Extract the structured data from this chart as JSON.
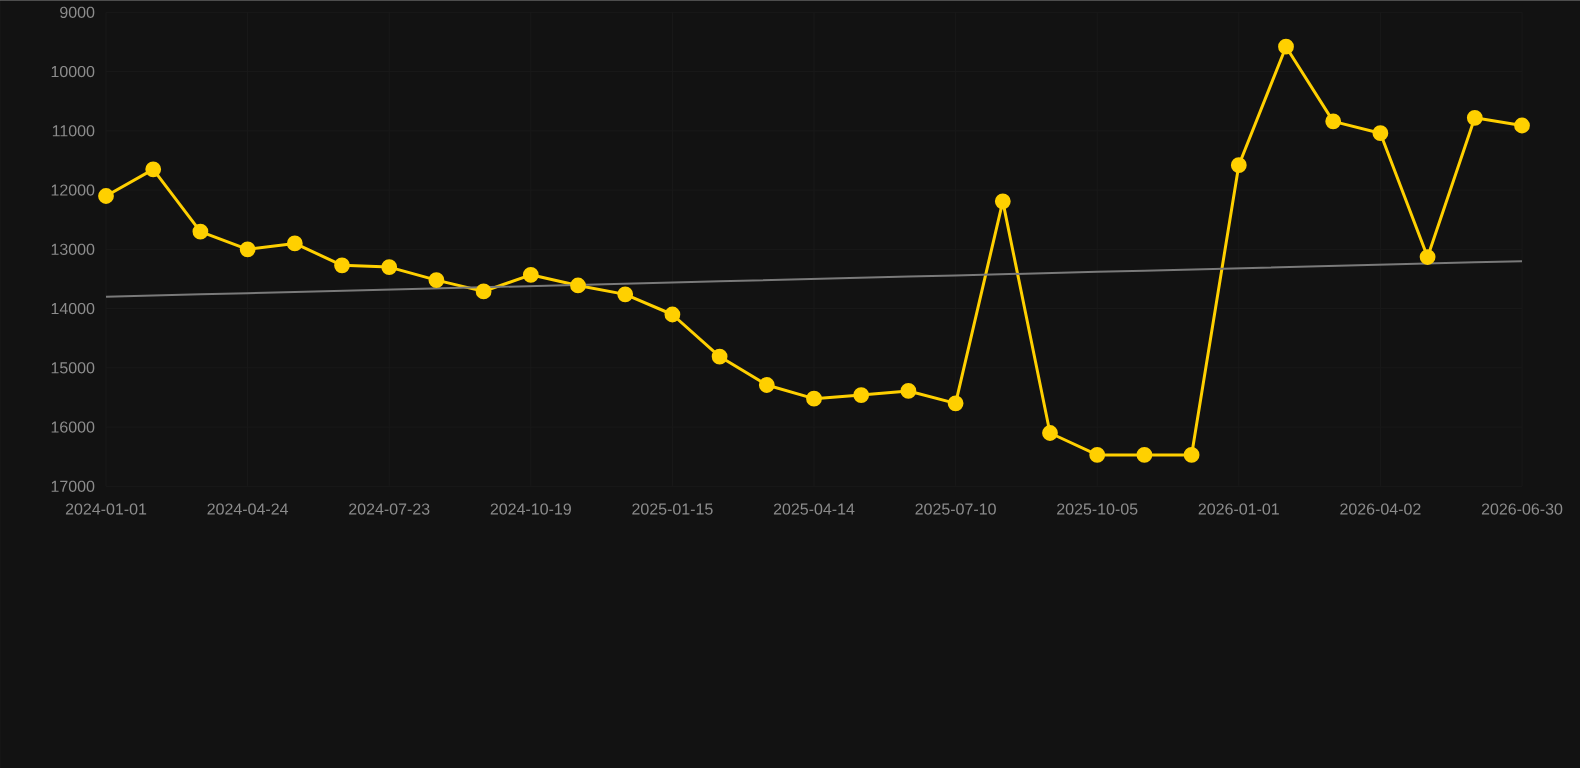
{
  "chart_data": {
    "type": "line",
    "categories": [
      "2024-01-01",
      null,
      null,
      "2024-04-24",
      null,
      null,
      "2024-07-23",
      null,
      null,
      "2024-10-19",
      null,
      null,
      "2025-01-15",
      null,
      null,
      "2025-04-14",
      null,
      null,
      "2025-07-10",
      null,
      null,
      "2025-10-05",
      null,
      null,
      "2026-01-01",
      null,
      null,
      "2026-04-02",
      null,
      null,
      "2026-06-30"
    ],
    "series": [
      {
        "color": "#ffd000",
        "marker": "circle",
        "values": [
          12100,
          11650,
          12700,
          13000,
          12900,
          13270,
          13300,
          13520,
          13710,
          13430,
          13610,
          13760,
          14100,
          14810,
          15290,
          15520,
          15460,
          15390,
          15600,
          12190,
          16100,
          16470,
          16470,
          16470,
          11580,
          9580,
          10840,
          11040,
          13130,
          10780,
          10910
        ]
      },
      {
        "color": "#7a7a7a",
        "marker": "none",
        "values": [
          13800,
          13780,
          13760,
          13740,
          13720,
          13700,
          13680,
          13660,
          13640,
          13620,
          null,
          13580,
          13560,
          13540,
          13520,
          13500,
          13480,
          13460,
          13440,
          13420,
          13400,
          13380,
          13360,
          13340,
          13320,
          13300,
          13280,
          13260,
          13240,
          13220,
          13200
        ]
      }
    ],
    "ylim": [
      17000,
      9000
    ],
    "yticks": [
      9000,
      10000,
      11000,
      12000,
      13000,
      14000,
      15000,
      16000,
      17000
    ],
    "grid": true
  }
}
